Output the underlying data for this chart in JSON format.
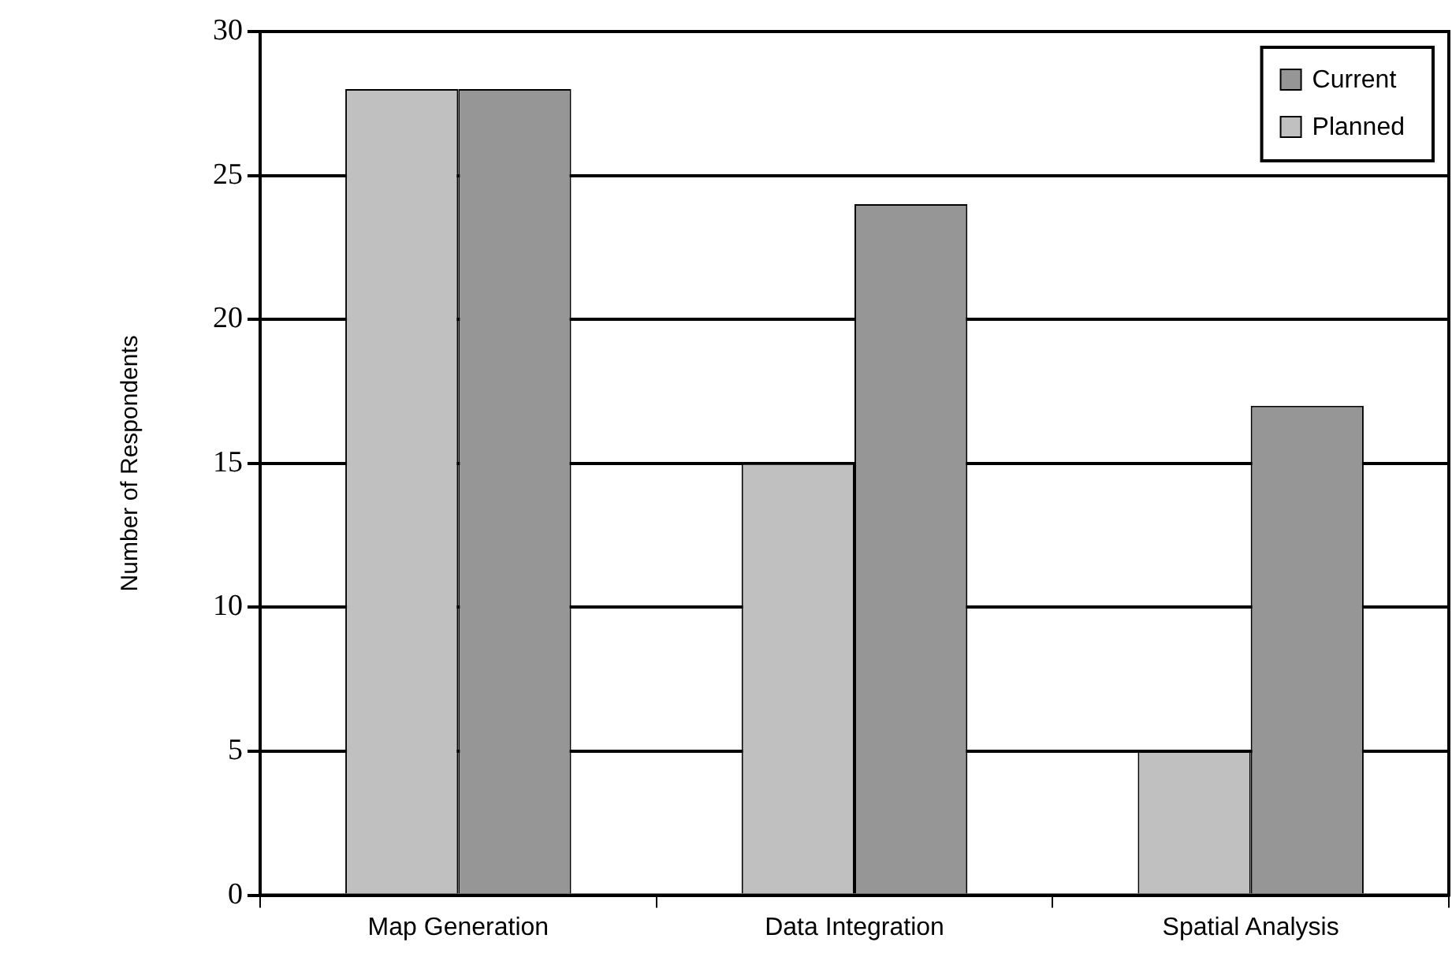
{
  "chart_data": {
    "type": "bar",
    "ylabel": "Number of Respondents",
    "categories": [
      "Map Generation",
      "Data Integration",
      "Spatial Analysis"
    ],
    "series": [
      {
        "name": "Planned",
        "color": "#c0c0c0",
        "values": [
          28,
          15,
          5
        ]
      },
      {
        "name": "Current",
        "color": "#969696",
        "values": [
          28,
          24,
          17
        ]
      }
    ],
    "ylim": [
      0,
      30
    ],
    "yticks": [
      0,
      5,
      10,
      15,
      20,
      25,
      30
    ],
    "grid": "y",
    "legend": "top right"
  }
}
